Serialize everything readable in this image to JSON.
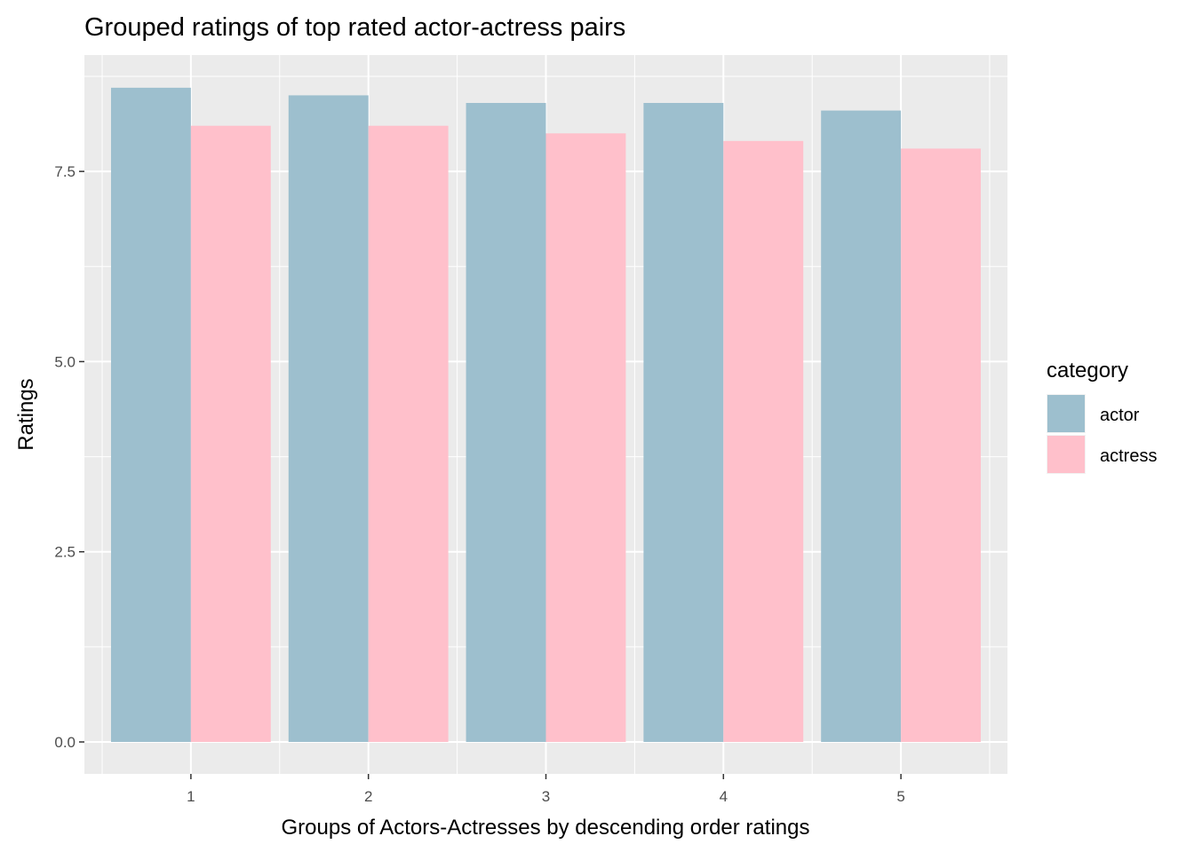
{
  "chart_data": {
    "type": "bar",
    "title": "Grouped ratings of top rated actor-actress pairs",
    "xlabel": "Groups of Actors-Actresses by descending order ratings",
    "ylabel": "Ratings",
    "categories": [
      "1",
      "2",
      "3",
      "4",
      "5"
    ],
    "series": [
      {
        "name": "actor",
        "color": "#9dbfce",
        "values": [
          8.6,
          8.5,
          8.4,
          8.4,
          8.3
        ]
      },
      {
        "name": "actress",
        "color": "#ffc0cb",
        "values": [
          8.1,
          8.1,
          8.0,
          7.9,
          7.8
        ]
      }
    ],
    "ylim": [
      -0.42,
      9.03
    ],
    "yticks": [
      0.0,
      2.5,
      5.0,
      7.5
    ],
    "ytick_labels": [
      "0.0",
      "2.5",
      "5.0",
      "7.5"
    ],
    "grid": true,
    "panel_background": "#ebebeb",
    "legend": {
      "title": "category",
      "placement": "right"
    }
  }
}
